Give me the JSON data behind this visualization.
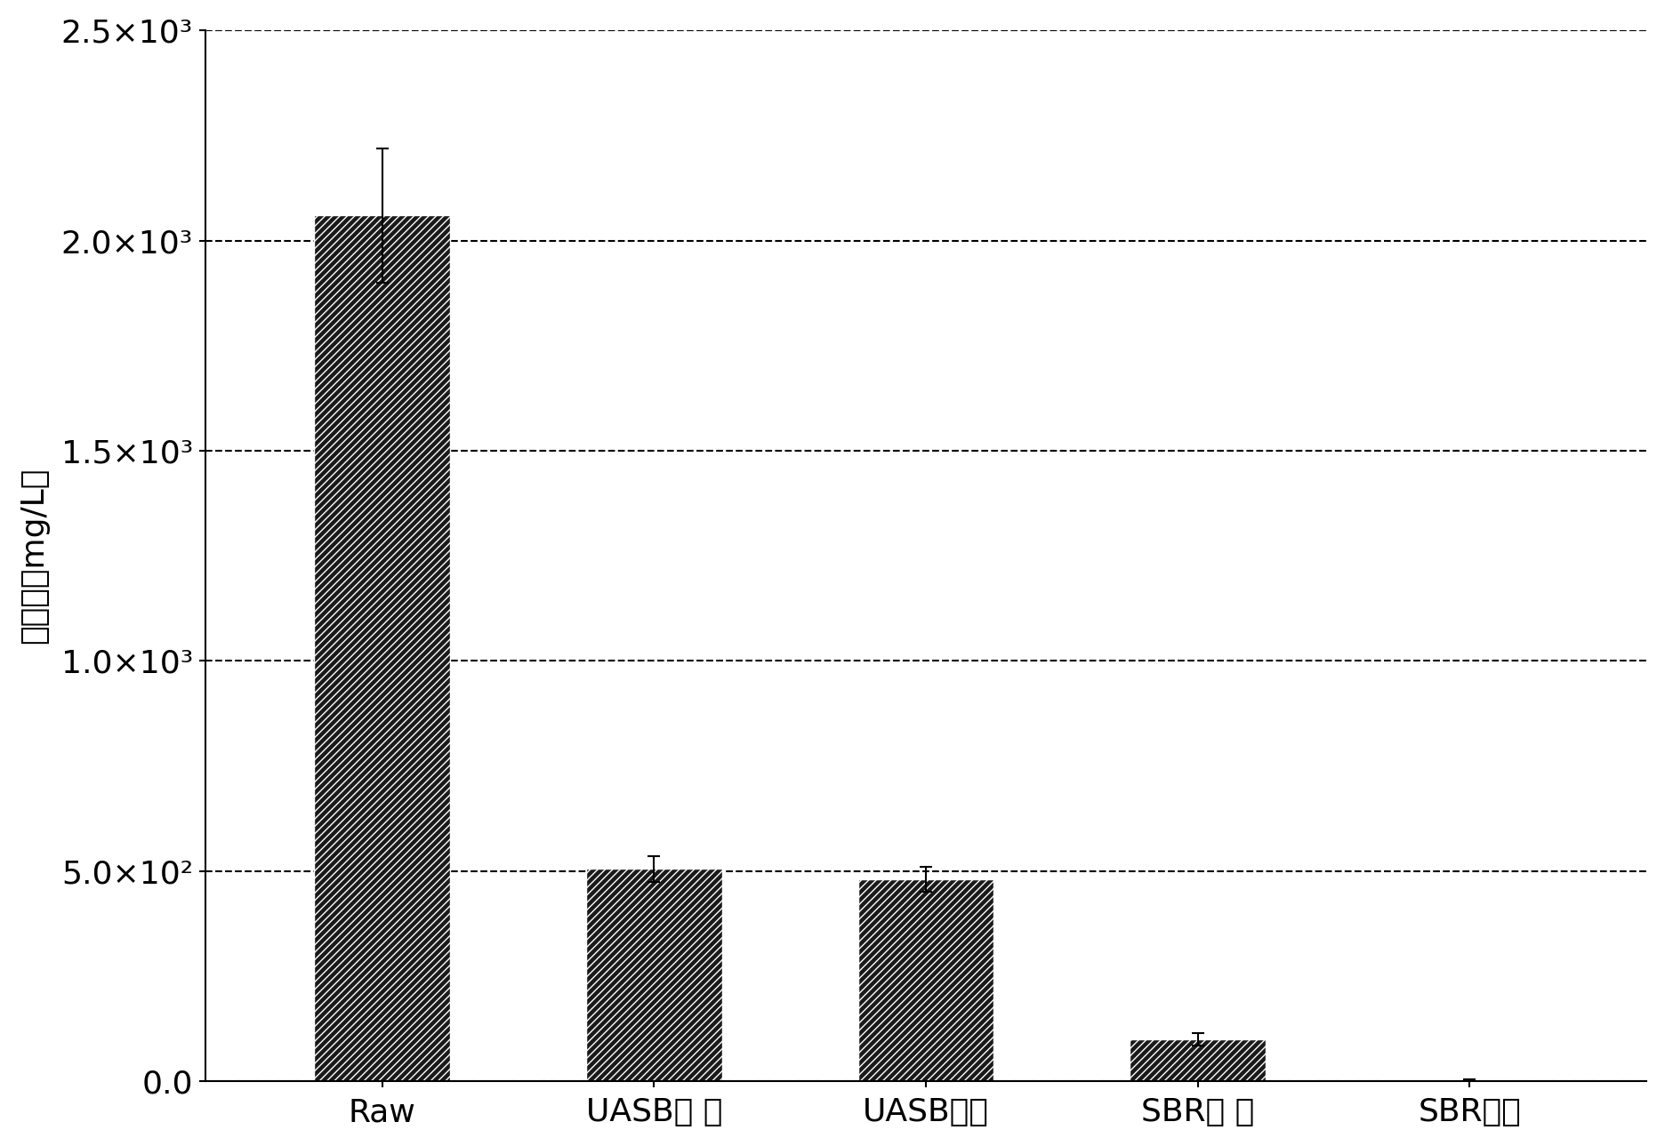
{
  "categories": [
    "Raw",
    "UASB进 水",
    "UASB出水",
    "SBR进 水",
    "SBR出水"
  ],
  "values": [
    2060,
    505,
    480,
    100,
    3
  ],
  "errors": [
    160,
    30,
    30,
    15,
    2
  ],
  "ylabel": "氨氮／（mg/L）",
  "ylim": [
    0,
    2500
  ],
  "yticks": [
    0,
    500,
    1000,
    1500,
    2000,
    2500
  ],
  "ytick_labels": [
    "0.0",
    "5.0×10²",
    "1.0×10³",
    "1.5×10³",
    "2.0×10³",
    "2.5×10³"
  ],
  "bar_color": "#1a1a1a",
  "hatch": "////",
  "grid_color": "#000000",
  "background_color": "#ffffff",
  "bar_width": 0.5,
  "figsize": [
    18.72,
    12.89
  ],
  "dpi": 100
}
